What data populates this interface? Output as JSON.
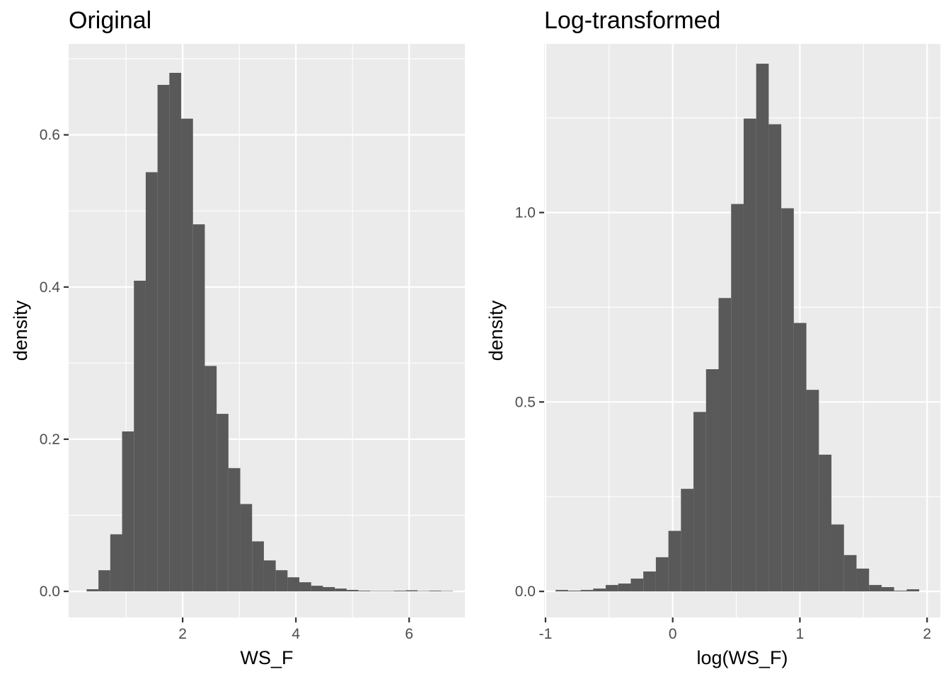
{
  "chart_data": [
    {
      "type": "bar",
      "subtype": "histogram",
      "title": "Original",
      "xlabel": "WS_F",
      "ylabel": "density",
      "xlim": [
        -0.0136,
        6.9846
      ],
      "ylim": [
        -0.0343,
        0.7196
      ],
      "xticks": [
        2,
        4,
        6
      ],
      "xtick_labels": [
        "2",
        "4",
        "6"
      ],
      "yticks": [
        0.0,
        0.2,
        0.4,
        0.6
      ],
      "ytick_labels": [
        "0.0",
        "0.2",
        "0.4",
        "0.6"
      ],
      "x_minor_grid": [
        1,
        3,
        5
      ],
      "y_minor_grid": [
        0.1,
        0.3,
        0.5,
        0.7
      ],
      "bin_width": 0.2087,
      "bin_edges": [
        0.3043,
        0.513,
        0.7217,
        0.9304,
        1.1391,
        1.3478,
        1.5565,
        1.7652,
        1.9739,
        2.1826,
        2.3913,
        2.6,
        2.8087,
        3.0174,
        3.2261,
        3.4348,
        3.6435,
        3.8522,
        4.0609,
        4.2696,
        4.4783,
        4.687,
        4.8957,
        5.1043,
        5.313,
        5.5217,
        5.7304,
        5.9391,
        6.1478,
        6.3565,
        6.5652,
        6.7739
      ],
      "values": [
        0.0028,
        0.0278,
        0.075,
        0.2102,
        0.4083,
        0.5509,
        0.6657,
        0.6815,
        0.6213,
        0.4824,
        0.2963,
        0.2333,
        0.162,
        0.1148,
        0.0657,
        0.0407,
        0.0278,
        0.0185,
        0.012,
        0.0074,
        0.0056,
        0.0037,
        0.0019,
        0.0009,
        0.0005,
        0.0005,
        0.0009,
        0.0014,
        0.0005,
        0.0009,
        0.0005
      ],
      "grid": true,
      "bar_color": "#595959",
      "panel_background": "#ebebeb",
      "grid_color": "#ffffff"
    },
    {
      "type": "bar",
      "subtype": "histogram",
      "title": "Log-transformed",
      "xlabel": "log(WS_F)",
      "ylabel": "density",
      "xlim": [
        -1.0108,
        2.1045
      ],
      "ylim": [
        -0.0688,
        1.4453
      ],
      "xticks": [
        -1,
        0,
        1,
        2
      ],
      "xtick_labels": [
        "-1",
        "0",
        "1",
        "2"
      ],
      "yticks": [
        0.0,
        0.5,
        1.0
      ],
      "ytick_labels": [
        "0.0",
        "0.5",
        "1.0"
      ],
      "x_minor_grid": [
        -0.5,
        0.5,
        1.5
      ],
      "y_minor_grid": [
        0.25,
        0.75,
        1.25
      ],
      "bin_width": 0.0986,
      "bin_edges": [
        -0.9211,
        -0.8225,
        -0.7239,
        -0.6254,
        -0.5268,
        -0.4282,
        -0.3296,
        -0.231,
        -0.1324,
        -0.0338,
        0.0648,
        0.1634,
        0.262,
        0.3606,
        0.4592,
        0.5577,
        0.6563,
        0.7549,
        0.8535,
        0.9521,
        1.0507,
        1.1493,
        1.2479,
        1.3465,
        1.4451,
        1.5437,
        1.6423,
        1.7408,
        1.8394,
        1.938
      ],
      "values": [
        0.0038,
        0.0019,
        0.0038,
        0.0075,
        0.0169,
        0.0207,
        0.0338,
        0.0526,
        0.0902,
        0.1598,
        0.2707,
        0.4737,
        0.5865,
        0.7744,
        1.0226,
        1.2481,
        1.3929,
        1.2331,
        1.0113,
        0.7086,
        0.532,
        0.3609,
        0.1767,
        0.0959,
        0.0602,
        0.0169,
        0.0113,
        0.0019,
        0.0056
      ],
      "grid": true,
      "bar_color": "#595959",
      "panel_background": "#ebebeb",
      "grid_color": "#ffffff"
    }
  ]
}
